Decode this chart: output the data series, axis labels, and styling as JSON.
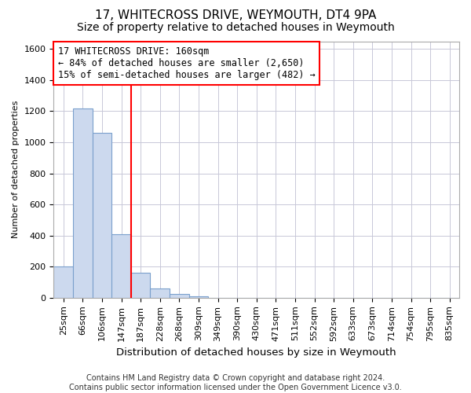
{
  "title": "17, WHITECROSS DRIVE, WEYMOUTH, DT4 9PA",
  "subtitle": "Size of property relative to detached houses in Weymouth",
  "xlabel": "Distribution of detached houses by size in Weymouth",
  "ylabel": "Number of detached properties",
  "footer_line1": "Contains HM Land Registry data © Crown copyright and database right 2024.",
  "footer_line2": "Contains public sector information licensed under the Open Government Licence v3.0.",
  "categories": [
    "25sqm",
    "66sqm",
    "106sqm",
    "147sqm",
    "187sqm",
    "228sqm",
    "268sqm",
    "309sqm",
    "349sqm",
    "390sqm",
    "430sqm",
    "471sqm",
    "511sqm",
    "552sqm",
    "592sqm",
    "633sqm",
    "673sqm",
    "714sqm",
    "754sqm",
    "795sqm",
    "835sqm"
  ],
  "values": [
    200,
    1220,
    1060,
    410,
    160,
    60,
    25,
    10,
    0,
    0,
    0,
    0,
    0,
    0,
    0,
    0,
    0,
    0,
    0,
    0,
    0
  ],
  "bar_color": "#ccd9ee",
  "bar_edge_color": "#7aa0cc",
  "red_line_x": 3.5,
  "annotation_line1": "17 WHITECROSS DRIVE: 160sqm",
  "annotation_line2": "← 84% of detached houses are smaller (2,650)",
  "annotation_line3": "15% of semi-detached houses are larger (482) →",
  "ylim": [
    0,
    1650
  ],
  "yticks": [
    0,
    200,
    400,
    600,
    800,
    1000,
    1200,
    1400,
    1600
  ],
  "background_color": "#ffffff",
  "plot_bg_color": "#ffffff",
  "grid_color": "#c8c8d8",
  "title_fontsize": 11,
  "subtitle_fontsize": 10,
  "annotation_fontsize": 8.5,
  "tick_fontsize": 8,
  "ylabel_fontsize": 8,
  "xlabel_fontsize": 9.5
}
